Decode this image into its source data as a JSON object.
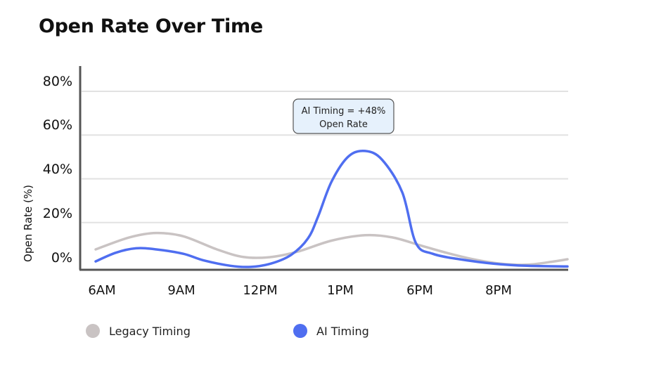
{
  "chart_data": {
    "type": "line",
    "title": "Open Rate Over Time",
    "ylabel": "Open Rate (%)",
    "xlabel": "",
    "x_ticks": [
      "6AM",
      "9AM",
      "12PM",
      "1PM",
      "6PM",
      "8PM"
    ],
    "y_ticks": [
      "0%",
      "20%",
      "40%",
      "60%",
      "80%"
    ],
    "ylim": [
      0,
      80
    ],
    "grid": "horizontal",
    "legend_position": "bottom",
    "series": [
      {
        "name": "Legacy Timing",
        "color": "#c9c3c3",
        "points": [
          [
            0,
            9
          ],
          [
            0.5,
            14.5
          ],
          [
            0.9,
            16.5
          ],
          [
            1.3,
            15
          ],
          [
            1.8,
            9
          ],
          [
            2.2,
            5.5
          ],
          [
            2.6,
            5.5
          ],
          [
            3.0,
            8
          ],
          [
            3.5,
            13
          ],
          [
            4.0,
            15.5
          ],
          [
            4.4,
            14.5
          ],
          [
            4.8,
            11
          ],
          [
            5.2,
            7.5
          ],
          [
            5.6,
            4.5
          ],
          [
            6.0,
            2.5
          ],
          [
            6.4,
            2
          ],
          [
            6.8,
            3.5
          ],
          [
            7.0,
            4.5
          ]
        ]
      },
      {
        "name": "AI Timing",
        "color": "#4f6ef0",
        "points": [
          [
            0,
            3.5
          ],
          [
            0.3,
            7.5
          ],
          [
            0.6,
            9.5
          ],
          [
            0.9,
            9
          ],
          [
            1.3,
            7
          ],
          [
            1.6,
            4
          ],
          [
            2.0,
            1.5
          ],
          [
            2.3,
            1
          ],
          [
            2.6,
            2.5
          ],
          [
            2.9,
            6.5
          ],
          [
            3.15,
            14
          ],
          [
            3.3,
            24
          ],
          [
            3.5,
            40
          ],
          [
            3.75,
            51.5
          ],
          [
            4.0,
            54
          ],
          [
            4.25,
            50
          ],
          [
            4.55,
            35
          ],
          [
            4.75,
            12
          ],
          [
            5.0,
            7
          ],
          [
            5.4,
            4.5
          ],
          [
            5.9,
            2.5
          ],
          [
            6.4,
            1.5
          ],
          [
            7.0,
            1.2
          ]
        ]
      }
    ],
    "annotation": {
      "line1": "AI Timing = +48%",
      "line2": "Open Rate"
    },
    "colors": {
      "axis": "#555555",
      "grid": "#e2e2e2",
      "annotation_fill": "#e6f1fc",
      "annotation_stroke": "#555555"
    }
  }
}
